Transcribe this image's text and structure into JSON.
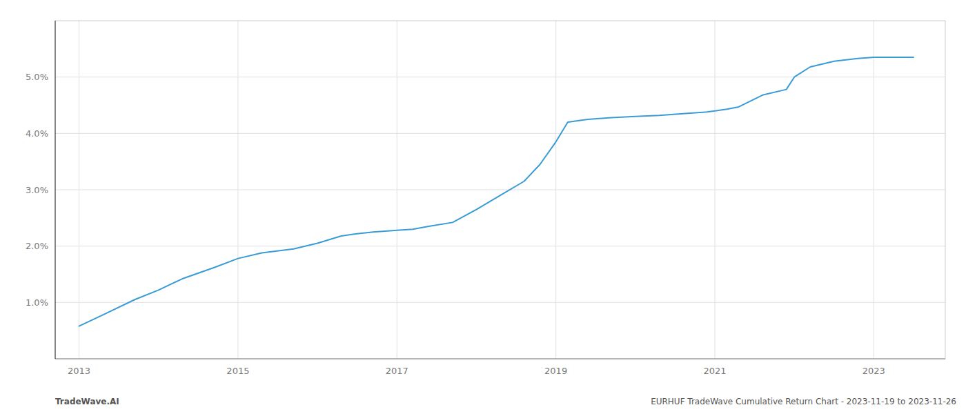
{
  "chart_data": {
    "type": "line",
    "x": [
      2013.0,
      2013.3,
      2013.7,
      2014.0,
      2014.3,
      2014.7,
      2015.0,
      2015.3,
      2015.7,
      2016.0,
      2016.3,
      2016.5,
      2016.7,
      2017.0,
      2017.2,
      2017.4,
      2017.7,
      2018.0,
      2018.3,
      2018.6,
      2018.8,
      2019.0,
      2019.15,
      2019.4,
      2019.7,
      2020.0,
      2020.3,
      2020.6,
      2020.9,
      2021.0,
      2021.15,
      2021.3,
      2021.6,
      2021.9,
      2022.0,
      2022.2,
      2022.5,
      2022.8,
      2023.0,
      2023.5
    ],
    "values": [
      0.58,
      0.78,
      1.05,
      1.22,
      1.42,
      1.62,
      1.78,
      1.88,
      1.95,
      2.05,
      2.18,
      2.22,
      2.25,
      2.28,
      2.3,
      2.35,
      2.42,
      2.65,
      2.9,
      3.15,
      3.45,
      3.85,
      4.2,
      4.25,
      4.28,
      4.3,
      4.32,
      4.35,
      4.38,
      4.4,
      4.43,
      4.47,
      4.68,
      4.78,
      5.0,
      5.18,
      5.28,
      5.33,
      5.35,
      5.35
    ],
    "color": "#3a9bd5",
    "xlim": [
      2012.7,
      2023.9
    ],
    "ylim": [
      0.0,
      6.0
    ],
    "xticks": [
      2013,
      2015,
      2017,
      2019,
      2021,
      2023
    ],
    "yticks": [
      {
        "value": 1.0,
        "label": "1.0%"
      },
      {
        "value": 2.0,
        "label": "2.0%"
      },
      {
        "value": 3.0,
        "label": "3.0%"
      },
      {
        "value": 4.0,
        "label": "4.0%"
      },
      {
        "value": 5.0,
        "label": "5.0%"
      }
    ],
    "grid": true,
    "annotations": [
      "TradeWave.AI",
      "EURHUF TradeWave Cumulative Return Chart - 2023-11-19 to 2023-11-26"
    ]
  }
}
